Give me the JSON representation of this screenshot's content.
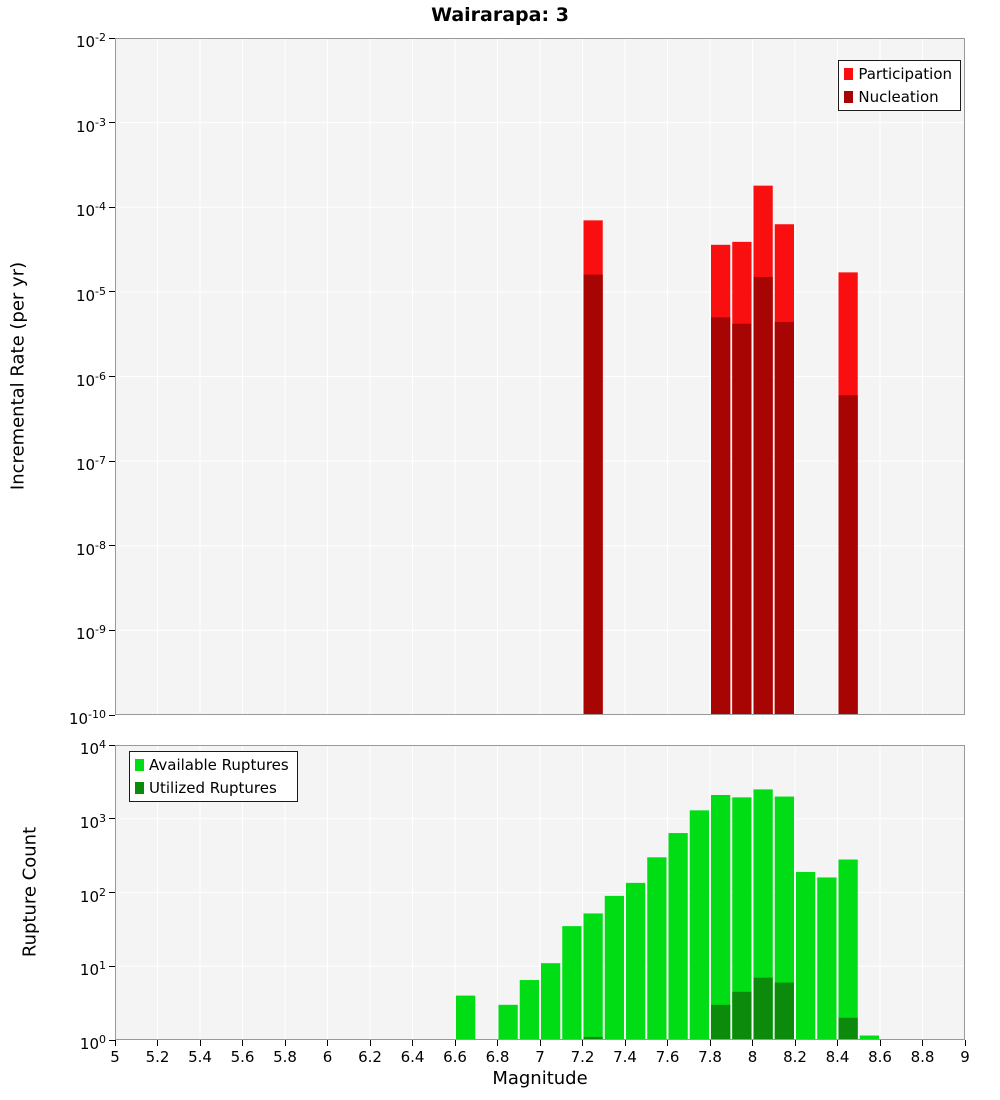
{
  "title": "Wairarapa: 3",
  "xlabel": "Magnitude",
  "colors": {
    "participation": "#f90f0f",
    "nucleation": "#a70404",
    "available_ruptures": "#00dd14",
    "utilized_ruptures": "#0b8a0b",
    "plot_background": "#f4f4f4",
    "grid": "#ffffff",
    "border": "#999999"
  },
  "chart_data": [
    {
      "type": "bar",
      "panel": "incremental-rate",
      "ylabel": "Incremental Rate (per yr)",
      "yscale": "log",
      "ylim": [
        1e-10,
        0.01
      ],
      "xlim": [
        5,
        9
      ],
      "xtick_step": 0.2,
      "bar_width": 0.1,
      "grid": true,
      "legend_position": "top-right",
      "series": [
        {
          "name": "Participation",
          "color_key": "participation",
          "points": [
            {
              "x": 7.25,
              "y": 7e-05
            },
            {
              "x": 7.85,
              "y": 3.6e-05
            },
            {
              "x": 7.95,
              "y": 3.9e-05
            },
            {
              "x": 8.05,
              "y": 0.00018
            },
            {
              "x": 8.15,
              "y": 6.3e-05
            },
            {
              "x": 8.45,
              "y": 1.7e-05
            }
          ]
        },
        {
          "name": "Nucleation",
          "color_key": "nucleation",
          "points": [
            {
              "x": 7.25,
              "y": 1.6e-05
            },
            {
              "x": 7.85,
              "y": 5e-06
            },
            {
              "x": 7.95,
              "y": 4.2e-06
            },
            {
              "x": 8.05,
              "y": 1.5e-05
            },
            {
              "x": 8.15,
              "y": 4.4e-06
            },
            {
              "x": 8.45,
              "y": 6e-07
            }
          ]
        }
      ]
    },
    {
      "type": "bar",
      "panel": "rupture-count",
      "ylabel": "Rupture Count",
      "yscale": "log",
      "ylim": [
        1,
        10000.0
      ],
      "xlim": [
        5,
        9
      ],
      "xtick_step": 0.2,
      "bar_width": 0.1,
      "grid": true,
      "legend_position": "top-left",
      "series": [
        {
          "name": "Available Ruptures",
          "color_key": "available_ruptures",
          "points": [
            {
              "x": 6.65,
              "y": 4
            },
            {
              "x": 6.85,
              "y": 3
            },
            {
              "x": 6.95,
              "y": 6.5
            },
            {
              "x": 7.05,
              "y": 11
            },
            {
              "x": 7.15,
              "y": 35
            },
            {
              "x": 7.25,
              "y": 52
            },
            {
              "x": 7.35,
              "y": 90
            },
            {
              "x": 7.45,
              "y": 135
            },
            {
              "x": 7.55,
              "y": 300
            },
            {
              "x": 7.65,
              "y": 640
            },
            {
              "x": 7.75,
              "y": 1300
            },
            {
              "x": 7.85,
              "y": 2100
            },
            {
              "x": 7.95,
              "y": 1950
            },
            {
              "x": 8.05,
              "y": 2500
            },
            {
              "x": 8.15,
              "y": 2000
            },
            {
              "x": 8.25,
              "y": 190
            },
            {
              "x": 8.35,
              "y": 160
            },
            {
              "x": 8.45,
              "y": 280
            },
            {
              "x": 8.55,
              "y": 1.15
            }
          ]
        },
        {
          "name": "Utilized Ruptures",
          "color_key": "utilized_ruptures",
          "points": [
            {
              "x": 7.25,
              "y": 1.1
            },
            {
              "x": 7.85,
              "y": 3
            },
            {
              "x": 7.95,
              "y": 4.5
            },
            {
              "x": 8.05,
              "y": 7
            },
            {
              "x": 8.15,
              "y": 6
            },
            {
              "x": 8.45,
              "y": 2
            }
          ]
        }
      ]
    }
  ]
}
